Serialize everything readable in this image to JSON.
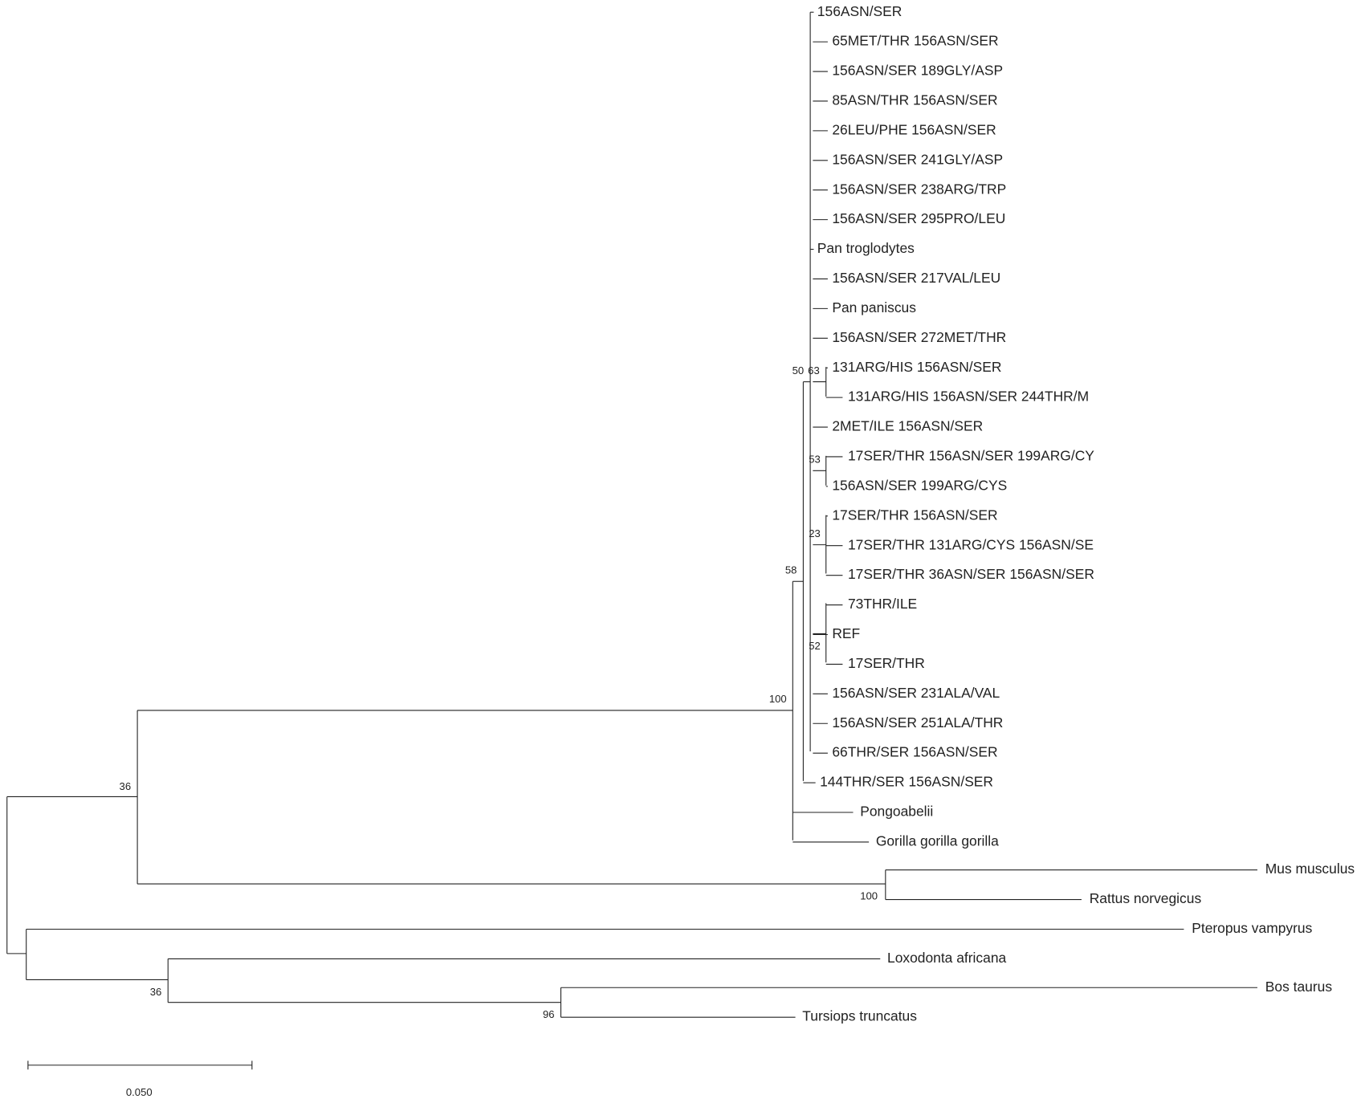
{
  "leaves": [
    "156ASN/SER",
    "65MET/THR 156ASN/SER",
    "156ASN/SER 189GLY/ASP",
    "85ASN/THR 156ASN/SER",
    "26LEU/PHE 156ASN/SER",
    "156ASN/SER 241GLY/ASP",
    "156ASN/SER 238ARG/TRP",
    "156ASN/SER 295PRO/LEU",
    "Pan troglodytes",
    "156ASN/SER 217VAL/LEU",
    "Pan paniscus",
    "156ASN/SER 272MET/THR",
    "131ARG/HIS 156ASN/SER",
    "131ARG/HIS 156ASN/SER 244THR/M",
    "2MET/ILE 156ASN/SER",
    "17SER/THR 156ASN/SER 199ARG/CY",
    "156ASN/SER 199ARG/CYS",
    "17SER/THR 156ASN/SER",
    "17SER/THR 131ARG/CYS 156ASN/SE",
    "17SER/THR 36ASN/SER 156ASN/SER",
    "73THR/ILE",
    "REF",
    "17SER/THR",
    "156ASN/SER 231ALA/VAL",
    "156ASN/SER 251ALA/THR",
    "66THR/SER 156ASN/SER",
    "144THR/SER 156ASN/SER",
    "Pongoabelii",
    "Gorilla gorilla gorilla",
    "Mus musculus",
    "Rattus norvegicus",
    "Pteropus vampyrus",
    "Loxodonta africana",
    "Bos taurus",
    "Tursiops truncatus"
  ],
  "bootstrap": [
    50,
    63,
    53,
    23,
    52,
    58,
    100,
    100,
    36,
    36,
    96
  ],
  "scale_bar": {
    "label": "0.050"
  }
}
